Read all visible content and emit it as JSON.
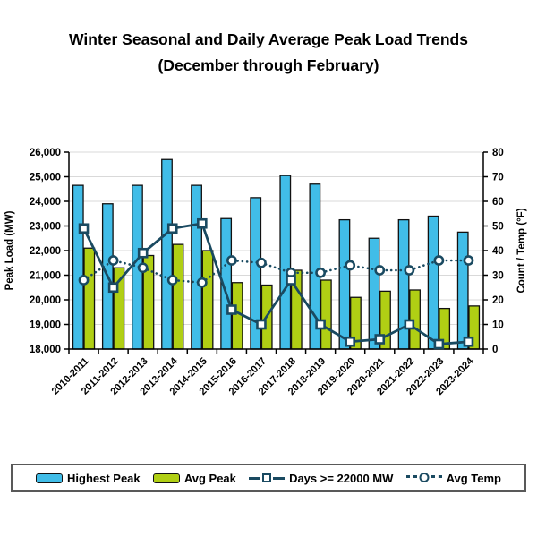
{
  "title": {
    "line1": "Winter Seasonal and Daily Average Peak Load Trends",
    "line2": "(December through February)"
  },
  "colors": {
    "highest_peak_bar": "#41bde8",
    "avg_peak_bar": "#b0cf14",
    "bar_border": "#111111",
    "line_navy": "#1a4a61",
    "marker_fill": "#ffffff",
    "gridline": "#d9d9d9",
    "axis": "#000000",
    "legend_border": "#595959"
  },
  "chart_data": {
    "type": "bar",
    "subtype": "combo-bar-line-dual-axis",
    "title": "Winter Seasonal and Daily Average Peak Load Trends (December through February)",
    "grid": true,
    "legend_position": "bottom",
    "categories": [
      "2010-2011",
      "2011-2012",
      "2012-2013",
      "2013-2014",
      "2014-2015",
      "2015-2016",
      "2016-2017",
      "2017-2018",
      "2018-2019",
      "2019-2020",
      "2020-2021",
      "2021-2022",
      "2022-2023",
      "2023-2024"
    ],
    "left_axis": {
      "label": "Peak Load (MW)",
      "min": 18000,
      "max": 26000,
      "step": 1000,
      "ticks": [
        "18,000",
        "19,000",
        "20,000",
        "21,000",
        "22,000",
        "23,000",
        "24,000",
        "25,000",
        "26,000"
      ]
    },
    "right_axis": {
      "label": "Count / Temp (°F)",
      "min": 0,
      "max": 80,
      "step": 10,
      "ticks": [
        "0",
        "10",
        "20",
        "30",
        "40",
        "50",
        "60",
        "70",
        "80"
      ]
    },
    "series": [
      {
        "name": "Highest Peak",
        "type": "bar",
        "axis": "left",
        "values": [
          24650,
          23900,
          24650,
          25700,
          24650,
          23300,
          24150,
          25050,
          24700,
          23250,
          22500,
          23250,
          23400,
          22750
        ]
      },
      {
        "name": "Avg Peak",
        "type": "bar",
        "axis": "left",
        "values": [
          22100,
          21300,
          21800,
          22250,
          22000,
          20700,
          20600,
          21200,
          20800,
          20100,
          20350,
          20400,
          19650,
          19750
        ]
      },
      {
        "name": "Days >= 22000 MW",
        "type": "line",
        "axis": "right",
        "marker": "square",
        "style": "solid",
        "values": [
          49,
          25,
          39,
          49,
          51,
          16,
          10,
          28,
          10,
          3,
          4,
          10,
          2,
          3
        ]
      },
      {
        "name": "Avg Temp",
        "type": "line",
        "axis": "right",
        "marker": "circle",
        "style": "dotted",
        "values": [
          28,
          36,
          33,
          28,
          27,
          36,
          35,
          31,
          31,
          34,
          32,
          32,
          36,
          36
        ]
      }
    ]
  },
  "legend": {
    "items": [
      {
        "label": "Highest Peak"
      },
      {
        "label": "Avg Peak"
      },
      {
        "label": "Days >= 22000 MW"
      },
      {
        "label": "Avg Temp"
      }
    ]
  }
}
